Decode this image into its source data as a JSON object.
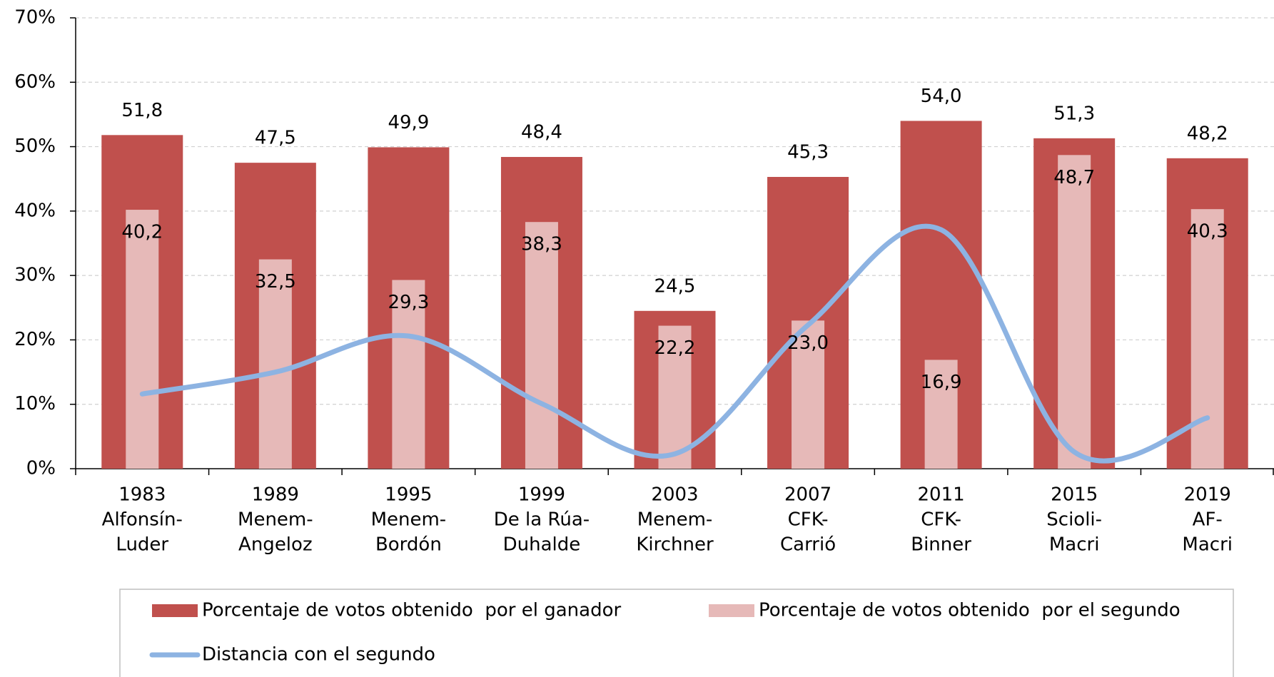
{
  "chart_data": {
    "type": "bar",
    "categories": [
      [
        "1983",
        "Alfonsín-",
        "Luder"
      ],
      [
        "1989",
        "Menem-",
        "Angeloz"
      ],
      [
        "1995",
        "Menem-",
        "Bordón"
      ],
      [
        "1999",
        "De la Rúa-",
        "Duhalde"
      ],
      [
        "2003",
        "Menem-",
        "Kirchner"
      ],
      [
        "2007",
        "CFK-",
        "Carrió"
      ],
      [
        "2011",
        "CFK-",
        "Binner"
      ],
      [
        "2015",
        "Scioli-",
        "Macri"
      ],
      [
        "2019",
        "AF-",
        "Macri"
      ]
    ],
    "series": [
      {
        "name": "Porcentaje de votos obtenido  por el ganador",
        "type": "bar",
        "color": "#c0504d",
        "values": [
          51.8,
          47.5,
          49.9,
          48.4,
          24.5,
          45.3,
          54.0,
          51.3,
          48.2
        ],
        "value_labels": [
          "51,8",
          "47,5",
          "49,9",
          "48,4",
          "24,5",
          "45,3",
          "54,0",
          "51,3",
          "48,2"
        ]
      },
      {
        "name": "Porcentaje de votos obtenido  por el segundo",
        "type": "bar",
        "color": "#e6b9b8",
        "values": [
          40.2,
          32.5,
          29.3,
          38.3,
          22.2,
          23.0,
          16.9,
          48.7,
          40.3
        ],
        "value_labels": [
          "40,2",
          "32,5",
          "29,3",
          "38,3",
          "22,2",
          "23,0",
          "16,9",
          "48,7",
          "40,3"
        ]
      },
      {
        "name": "Distancia con el segundo",
        "type": "line",
        "color": "#8db3e2",
        "values": [
          11.6,
          15.0,
          20.6,
          10.1,
          2.3,
          22.3,
          37.1,
          2.6,
          7.9
        ]
      }
    ],
    "ylim": [
      0,
      70
    ],
    "yticks": [
      {
        "value": 0,
        "label": "0%"
      },
      {
        "value": 10,
        "label": "10%"
      },
      {
        "value": 20,
        "label": "20%"
      },
      {
        "value": 30,
        "label": "30%"
      },
      {
        "value": 40,
        "label": "40%"
      },
      {
        "value": 50,
        "label": "50%"
      },
      {
        "value": 60,
        "label": "60%"
      },
      {
        "value": 70,
        "label": "70%"
      }
    ],
    "grid": true,
    "legend": "bottom"
  }
}
